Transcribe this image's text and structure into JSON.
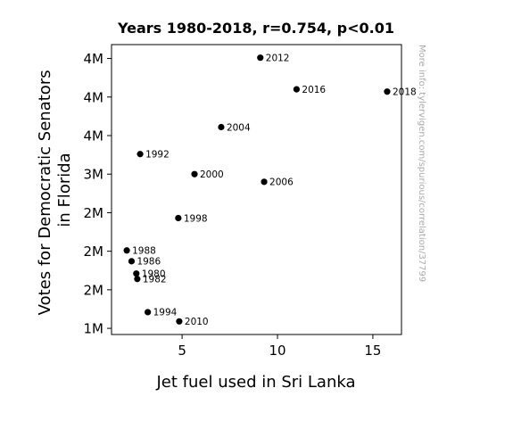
{
  "chart_data": {
    "type": "scatter",
    "title": "Years 1980-2018, r=0.754, p<0.01",
    "xlabel": "Jet fuel used in Sri Lanka",
    "ylabel_lines": [
      "Votes for Democratic Senators",
      "in Florida"
    ],
    "watermark": "More info: tylervigen.com/spurious/correlation/37799",
    "xlim": [
      1.3,
      16.5
    ],
    "ylim": [
      0.92,
      4.68
    ],
    "xticks": [
      {
        "value": 5,
        "label": "5"
      },
      {
        "value": 10,
        "label": "10"
      },
      {
        "value": 15,
        "label": "15"
      }
    ],
    "yticks": [
      {
        "value": 1.0,
        "label": "1M"
      },
      {
        "value": 1.5,
        "label": "2M"
      },
      {
        "value": 2.0,
        "label": "2M"
      },
      {
        "value": 2.5,
        "label": "2M"
      },
      {
        "value": 3.0,
        "label": "3M"
      },
      {
        "value": 3.5,
        "label": "4M"
      },
      {
        "value": 4.0,
        "label": "4M"
      },
      {
        "value": 4.5,
        "label": "4M"
      }
    ],
    "points": [
      {
        "label": "2012",
        "x": 9.1,
        "y": 4.51
      },
      {
        "label": "2016",
        "x": 11.0,
        "y": 4.1
      },
      {
        "label": "2018",
        "x": 15.75,
        "y": 4.07
      },
      {
        "label": "2004",
        "x": 7.05,
        "y": 3.61
      },
      {
        "label": "1992",
        "x": 2.8,
        "y": 3.26
      },
      {
        "label": "2000",
        "x": 5.65,
        "y": 3.0
      },
      {
        "label": "2006",
        "x": 9.3,
        "y": 2.9
      },
      {
        "label": "1998",
        "x": 4.8,
        "y": 2.43
      },
      {
        "label": "1988",
        "x": 2.1,
        "y": 2.01
      },
      {
        "label": "1986",
        "x": 2.35,
        "y": 1.87
      },
      {
        "label": "1980",
        "x": 2.6,
        "y": 1.71
      },
      {
        "label": "1982",
        "x": 2.65,
        "y": 1.64
      },
      {
        "label": "1994",
        "x": 3.2,
        "y": 1.21
      },
      {
        "label": "2010",
        "x": 4.85,
        "y": 1.09
      }
    ],
    "marker_color": "#000000",
    "grid": false
  }
}
